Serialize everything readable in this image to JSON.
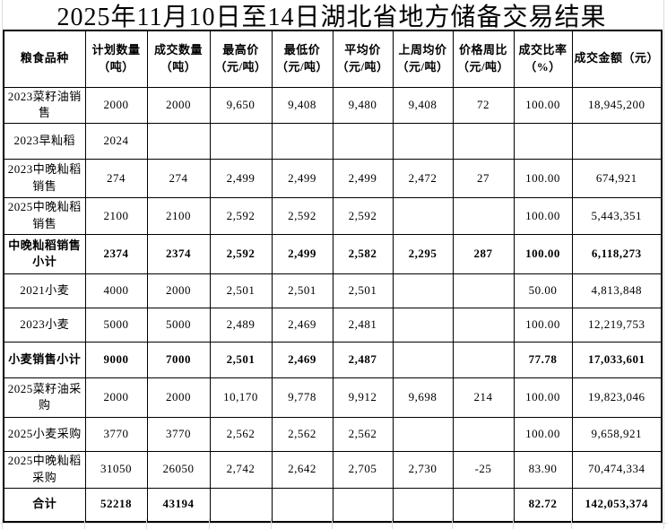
{
  "title": "2025年11月10日至14日湖北省地方储备交易结果",
  "table": {
    "columns": [
      "粮食品种",
      "计划数量\n（吨）",
      "成交数量\n（吨）",
      "最高价\n（元/吨）",
      "最低价\n（元/吨）",
      "平均价\n（元/吨）",
      "上周均价\n（元/吨）",
      "价格周比\n（元/吨）",
      "成交比率\n（%）",
      "成交金额（元）"
    ],
    "rows": [
      {
        "emphasis": false,
        "cells": [
          "2023菜籽油销\n售",
          "2000",
          "2000",
          "9,650",
          "9,408",
          "9,480",
          "9,408",
          "72",
          "100.00",
          "18,945,200"
        ]
      },
      {
        "emphasis": false,
        "cells": [
          "2023早籼稻",
          "2024",
          "",
          "",
          "",
          "",
          "",
          "",
          "",
          ""
        ]
      },
      {
        "emphasis": false,
        "cells": [
          "2023中晚籼稻\n销售",
          "274",
          "274",
          "2,499",
          "2,499",
          "2,499",
          "2,472",
          "27",
          "100.00",
          "674,921"
        ]
      },
      {
        "emphasis": false,
        "cells": [
          "2025中晚籼稻\n销售",
          "2100",
          "2100",
          "2,592",
          "2,592",
          "2,592",
          "",
          "",
          "100.00",
          "5,443,351"
        ]
      },
      {
        "emphasis": true,
        "cells": [
          "中晚籼稻销售\n小计",
          "2374",
          "2374",
          "2,592",
          "2,499",
          "2,582",
          "2,295",
          "287",
          "100.00",
          "6,118,273"
        ]
      },
      {
        "emphasis": false,
        "cells": [
          "2021小麦",
          "4000",
          "2000",
          "2,501",
          "2,501",
          "2,501",
          "",
          "",
          "50.00",
          "4,813,848"
        ]
      },
      {
        "emphasis": false,
        "cells": [
          "2023小麦",
          "5000",
          "5000",
          "2,489",
          "2,469",
          "2,481",
          "",
          "",
          "100.00",
          "12,219,753"
        ]
      },
      {
        "emphasis": true,
        "cells": [
          "小麦销售小计",
          "9000",
          "7000",
          "2,501",
          "2,469",
          "2,487",
          "",
          "",
          "77.78",
          "17,033,601"
        ]
      },
      {
        "emphasis": false,
        "cells": [
          "2025菜籽油采\n购",
          "2000",
          "2000",
          "10,170",
          "9,778",
          "9,912",
          "9,698",
          "214",
          "100.00",
          "19,823,046"
        ]
      },
      {
        "emphasis": false,
        "cells": [
          "2025小麦采购",
          "3770",
          "3770",
          "2,562",
          "2,562",
          "2,562",
          "",
          "",
          "100.00",
          "9,658,921"
        ]
      },
      {
        "emphasis": false,
        "cells": [
          "2025中晚籼稻\n采购",
          "31050",
          "26050",
          "2,742",
          "2,642",
          "2,705",
          "2,730",
          "-25",
          "83.90",
          "70,474,334"
        ]
      },
      {
        "emphasis": true,
        "cells": [
          "合计",
          "52218",
          "43194",
          "",
          "",
          "",
          "",
          "",
          "82.72",
          "142,053,374"
        ]
      }
    ]
  },
  "colors": {
    "text": "#000000",
    "table_border": "#000000",
    "background": "#ffffff",
    "sheet_gridline": "#dcdcdc"
  }
}
